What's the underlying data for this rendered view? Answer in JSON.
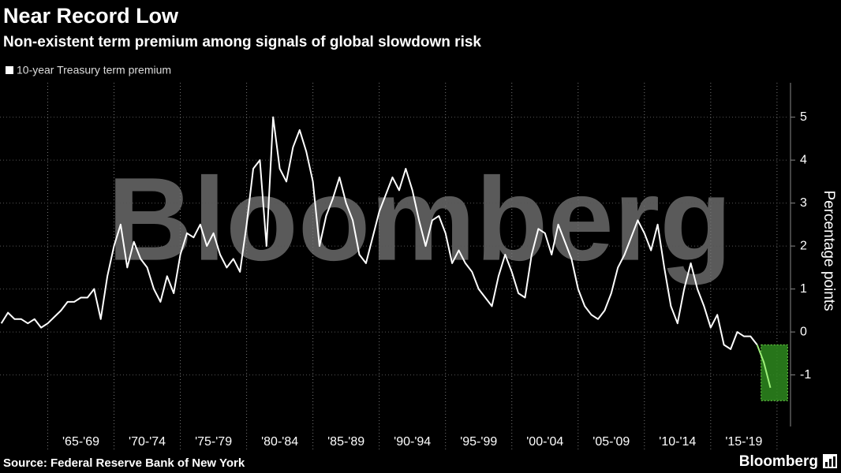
{
  "chart_data": {
    "type": "line",
    "title": "Near Record Low",
    "subtitle": "Non-existent term premium among signals of global slowdown risk",
    "ylabel": "Percentage points",
    "source": "Source: Federal Reserve Bank of New York",
    "brand": "Bloomberg",
    "watermark": "Bloomberg",
    "xlim": [
      1961.4,
      2020.9
    ],
    "ylim": [
      -2.2,
      5.8
    ],
    "yticks": [
      -1,
      0,
      1,
      2,
      3,
      4,
      5
    ],
    "xticks": [
      {
        "value": 1965,
        "label": "'65-'69"
      },
      {
        "value": 1970,
        "label": "'70-'74"
      },
      {
        "value": 1975,
        "label": "'75-'79"
      },
      {
        "value": 1980,
        "label": "'80-'84"
      },
      {
        "value": 1985,
        "label": "'85-'89"
      },
      {
        "value": 1990,
        "label": "'90-'94"
      },
      {
        "value": 1995,
        "label": "'95-'99"
      },
      {
        "value": 2000,
        "label": "'00-'04"
      },
      {
        "value": 2005,
        "label": "'05-'09"
      },
      {
        "value": 2010,
        "label": "'10-'14"
      },
      {
        "value": 2015,
        "label": "'15-'19"
      }
    ],
    "highlight": {
      "xlim": [
        2018.8,
        2020.8
      ],
      "ylim": [
        -1.6,
        -0.3
      ],
      "color": "#9ef07a"
    },
    "x": [
      1961.5,
      1962,
      1962.5,
      1963,
      1963.5,
      1964,
      1964.5,
      1965,
      1965.5,
      1966,
      1966.5,
      1967,
      1967.5,
      1968,
      1968.5,
      1969,
      1969.5,
      1970,
      1970.5,
      1971,
      1971.5,
      1972,
      1972.5,
      1973,
      1973.5,
      1974,
      1974.5,
      1975,
      1975.5,
      1976,
      1976.5,
      1977,
      1977.5,
      1978,
      1978.5,
      1979,
      1979.5,
      1980,
      1980.5,
      1981,
      1981.5,
      1982,
      1982.5,
      1983,
      1983.5,
      1984,
      1984.5,
      1985,
      1985.5,
      1986,
      1986.5,
      1987,
      1987.5,
      1988,
      1988.5,
      1989,
      1989.5,
      1990,
      1990.5,
      1991,
      1991.5,
      1992,
      1992.5,
      1993,
      1993.5,
      1994,
      1994.5,
      1995,
      1995.5,
      1996,
      1996.5,
      1997,
      1997.5,
      1998,
      1998.5,
      1999,
      1999.5,
      2000,
      2000.5,
      2001,
      2001.5,
      2002,
      2002.5,
      2003,
      2003.5,
      2004,
      2004.5,
      2005,
      2005.5,
      2006,
      2006.5,
      2007,
      2007.5,
      2008,
      2008.5,
      2009,
      2009.5,
      2010,
      2010.5,
      2011,
      2011.5,
      2012,
      2012.5,
      2013,
      2013.5,
      2014,
      2014.5,
      2015,
      2015.5,
      2016,
      2016.5,
      2017,
      2017.5,
      2018,
      2018.5,
      2019,
      2019.5
    ],
    "series": [
      {
        "name": "10-year Treasury term premium",
        "color": "#ffffff",
        "values": [
          0.2,
          0.45,
          0.3,
          0.3,
          0.2,
          0.3,
          0.1,
          0.2,
          0.35,
          0.5,
          0.7,
          0.7,
          0.8,
          0.8,
          1.0,
          0.3,
          1.3,
          2.0,
          2.5,
          1.5,
          2.1,
          1.7,
          1.5,
          1.0,
          0.7,
          1.3,
          0.9,
          1.8,
          2.3,
          2.2,
          2.5,
          2.0,
          2.3,
          1.8,
          1.5,
          1.7,
          1.4,
          2.5,
          3.8,
          4.0,
          2.0,
          5.0,
          3.8,
          3.5,
          4.3,
          4.7,
          4.2,
          3.5,
          2.0,
          2.7,
          3.1,
          3.6,
          3.0,
          2.6,
          1.8,
          1.6,
          2.2,
          2.8,
          3.2,
          3.6,
          3.3,
          3.8,
          3.3,
          2.6,
          2.0,
          2.6,
          2.7,
          2.3,
          1.6,
          1.9,
          1.6,
          1.4,
          1.0,
          0.8,
          0.6,
          1.3,
          1.8,
          1.4,
          0.9,
          0.8,
          1.8,
          2.4,
          2.3,
          1.8,
          2.5,
          2.1,
          1.7,
          1.0,
          0.6,
          0.4,
          0.3,
          0.5,
          0.9,
          1.5,
          1.8,
          2.2,
          2.6,
          2.3,
          1.9,
          2.5,
          1.5,
          0.6,
          0.2,
          1.0,
          1.6,
          1.0,
          0.6,
          0.1,
          0.4,
          -0.3,
          -0.4,
          0.0,
          -0.1,
          -0.1,
          -0.3,
          -0.7,
          -1.3
        ]
      }
    ]
  }
}
